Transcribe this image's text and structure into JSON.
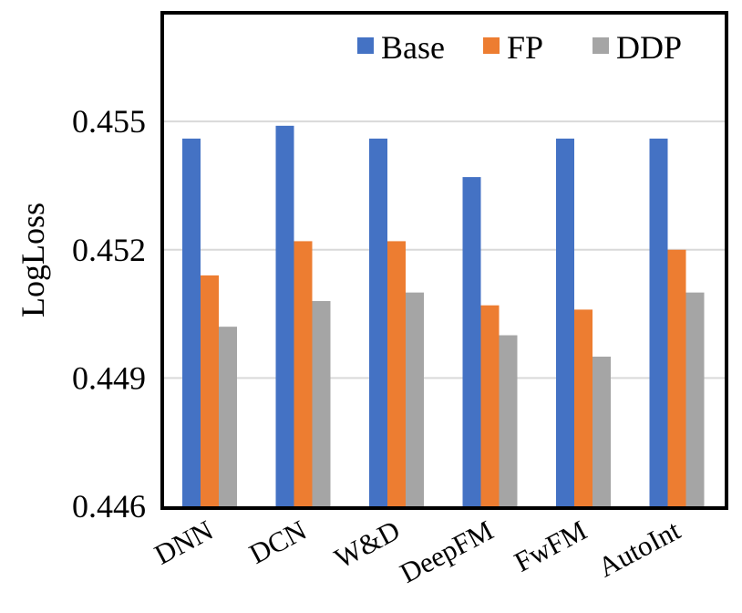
{
  "chart_data": {
    "type": "bar",
    "title": "",
    "xlabel": "",
    "ylabel": "LogLoss",
    "ylim": [
      0.446,
      0.4575
    ],
    "yticks": [
      0.446,
      0.449,
      0.452,
      0.455
    ],
    "ytick_labels": [
      "0.446",
      "0.449",
      "0.452",
      "0.455"
    ],
    "grid": true,
    "legend_position": "top-right",
    "categories": [
      "DNN",
      "DCN",
      "W&D",
      "DeepFM",
      "FwFM",
      "AutoInt"
    ],
    "series": [
      {
        "name": "Base",
        "color": "#4472c4",
        "values": [
          0.4546,
          0.4549,
          0.4546,
          0.4537,
          0.4546,
          0.4546
        ]
      },
      {
        "name": "FP",
        "color": "#ed7d31",
        "values": [
          0.4514,
          0.4522,
          0.4522,
          0.4507,
          0.4506,
          0.452
        ]
      },
      {
        "name": "DDP",
        "color": "#a5a5a5",
        "values": [
          0.4502,
          0.4508,
          0.451,
          0.45,
          0.4495,
          0.451
        ]
      }
    ]
  }
}
